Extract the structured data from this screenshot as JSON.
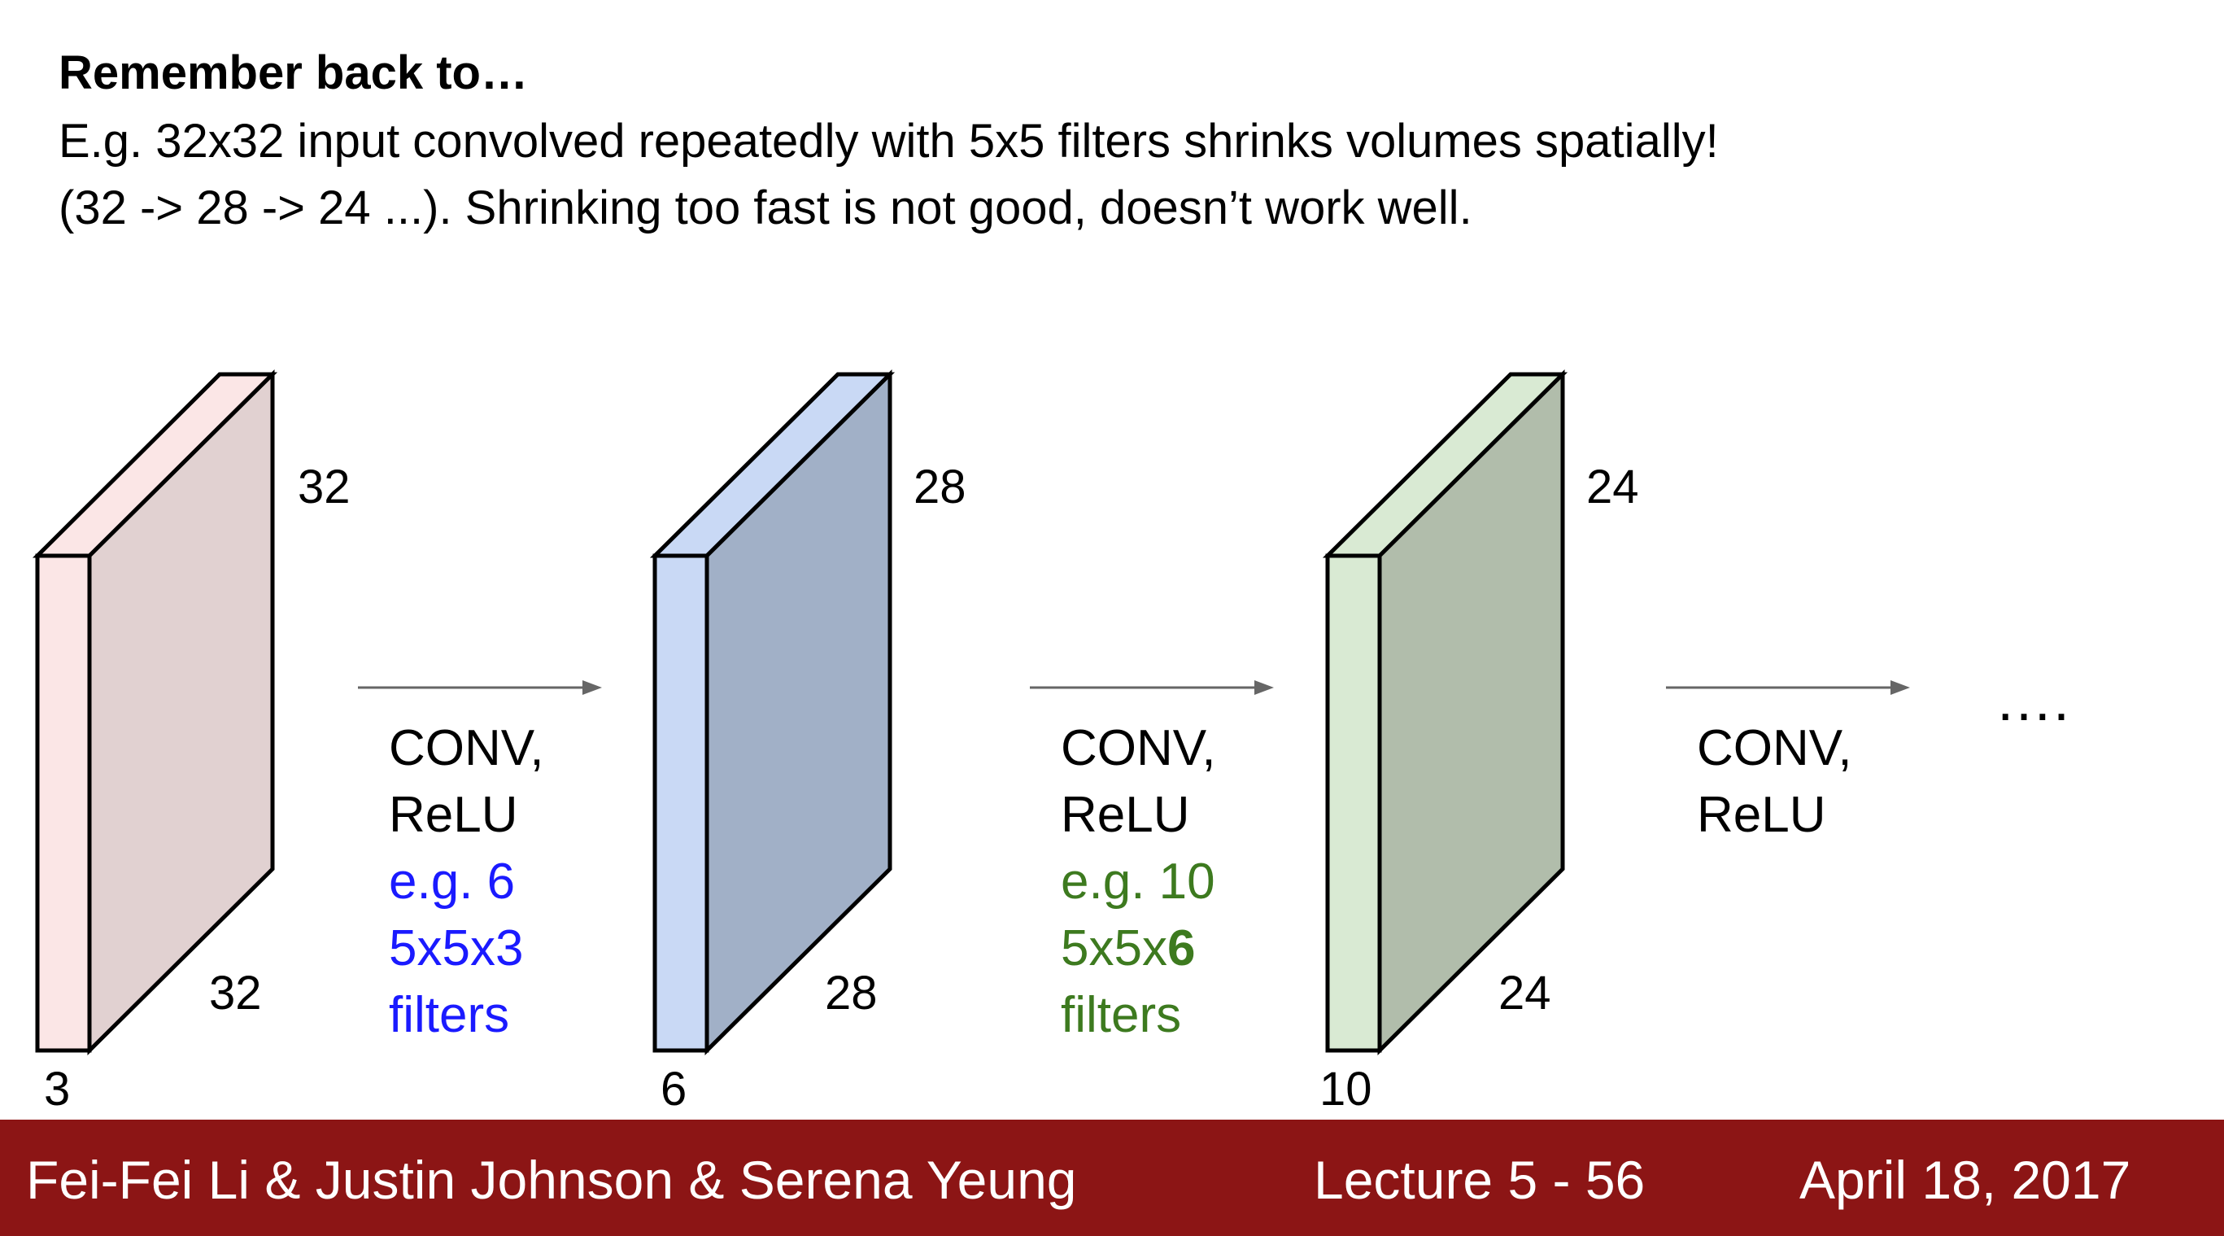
{
  "slide": {
    "heading": "Remember back to…",
    "lines": [
      "E.g. 32x32 input convolved repeatedly with 5x5 filters shrinks volumes spatially!",
      "(32 -> 28 -> 24 ...). Shrinking too fast is not good, doesn’t work well."
    ]
  },
  "volumes": [
    {
      "height": "32",
      "width": "32",
      "depth": "3",
      "front_color": "#fbe6e6",
      "side_color": "#e1d1d1"
    },
    {
      "height": "28",
      "width": "28",
      "depth": "6",
      "front_color": "#c9d9f5",
      "side_color": "#a1b0c7"
    },
    {
      "height": "24",
      "width": "24",
      "depth": "10",
      "front_color": "#d9ead3",
      "side_color": "#b1bdab"
    }
  ],
  "steps": [
    {
      "line1": "CONV,",
      "line2": "ReLU",
      "detail1": "e.g. 6",
      "detail2_plain": "5x5x3",
      "detail2_bold": "",
      "detail3": "filters",
      "detail_color": "#1a1aff"
    },
    {
      "line1": "CONV,",
      "line2": "ReLU",
      "detail1": "e.g. 10",
      "detail2_plain": "5x5x",
      "detail2_bold": "6",
      "detail3": "filters",
      "detail_color": "#3d7a1f"
    },
    {
      "line1": "CONV,",
      "line2": "ReLU"
    }
  ],
  "ellipsis": "….",
  "arrow_color": "#666666",
  "footer": {
    "authors": "Fei-Fei Li & Justin Johnson & Serena Yeung",
    "lecture": "Lecture 5 - 56",
    "date": "April 18, 2017",
    "background": "#8c1515"
  }
}
